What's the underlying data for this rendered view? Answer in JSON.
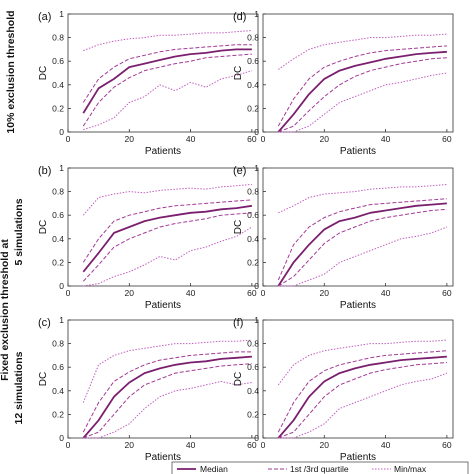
{
  "row_labels": {
    "top": "10% exclusion threshold",
    "group_outer": "Fixed exclusion threshold at",
    "middle": "5 simulations",
    "bottom": "12 simulations"
  },
  "legend": {
    "median": "Median",
    "quartile": "1st /3rd quartile",
    "minmax": "Min/max"
  },
  "colors": {
    "median": "#7a1f6e",
    "quartile": "#a23a96",
    "minmax": "#c25fc0",
    "axis": "#333333"
  },
  "chart_data": [
    {
      "panel": "(a)",
      "type": "line",
      "xlabel": "Patients",
      "ylabel": "DC",
      "xlim": [
        0,
        62
      ],
      "ylim": [
        0,
        1
      ],
      "xticks": [
        0,
        20,
        40,
        60
      ],
      "yticks": [
        0,
        0.2,
        0.4,
        0.6,
        0.8,
        1
      ],
      "x": [
        5,
        10,
        15,
        20,
        25,
        30,
        35,
        40,
        45,
        50,
        55,
        60
      ],
      "series": [
        {
          "name": "Median",
          "style": "median",
          "values": [
            0.16,
            0.37,
            0.45,
            0.55,
            0.58,
            0.61,
            0.64,
            0.66,
            0.67,
            0.69,
            0.7,
            0.7
          ]
        },
        {
          "name": "1st /3rd quartile",
          "style": "quartile",
          "values": [
            0.25,
            0.45,
            0.55,
            0.62,
            0.65,
            0.68,
            0.7,
            0.71,
            0.72,
            0.73,
            0.74,
            0.74
          ]
        },
        {
          "name": "1st /3rd quartile",
          "style": "quartile",
          "values": [
            0.05,
            0.25,
            0.38,
            0.46,
            0.52,
            0.55,
            0.58,
            0.6,
            0.63,
            0.64,
            0.65,
            0.66
          ]
        },
        {
          "name": "Min/max",
          "style": "minmax",
          "values": [
            0.69,
            0.74,
            0.77,
            0.79,
            0.8,
            0.82,
            0.82,
            0.83,
            0.84,
            0.84,
            0.85,
            0.86
          ]
        },
        {
          "name": "Min/max",
          "style": "minmax",
          "values": [
            0.02,
            0.06,
            0.12,
            0.25,
            0.3,
            0.4,
            0.35,
            0.42,
            0.38,
            0.45,
            0.48,
            0.52
          ]
        }
      ]
    },
    {
      "panel": "(b)",
      "type": "line",
      "xlabel": "Patients",
      "ylabel": "DC",
      "xlim": [
        0,
        62
      ],
      "ylim": [
        0,
        1
      ],
      "xticks": [
        0,
        20,
        40,
        60
      ],
      "yticks": [
        0,
        0.2,
        0.4,
        0.6,
        0.8,
        1
      ],
      "x": [
        5,
        10,
        15,
        20,
        25,
        30,
        35,
        40,
        45,
        50,
        55,
        60
      ],
      "series": [
        {
          "name": "Median",
          "style": "median",
          "values": [
            0.12,
            0.28,
            0.45,
            0.5,
            0.55,
            0.58,
            0.6,
            0.62,
            0.63,
            0.65,
            0.66,
            0.68
          ]
        },
        {
          "name": "1st /3rd quartile",
          "style": "quartile",
          "values": [
            0.2,
            0.4,
            0.55,
            0.6,
            0.63,
            0.66,
            0.68,
            0.69,
            0.7,
            0.71,
            0.72,
            0.73
          ]
        },
        {
          "name": "1st /3rd quartile",
          "style": "quartile",
          "values": [
            0.04,
            0.18,
            0.33,
            0.4,
            0.45,
            0.5,
            0.53,
            0.55,
            0.57,
            0.6,
            0.61,
            0.62
          ]
        },
        {
          "name": "Min/max",
          "style": "minmax",
          "values": [
            0.6,
            0.75,
            0.78,
            0.8,
            0.79,
            0.81,
            0.82,
            0.83,
            0.82,
            0.84,
            0.85,
            0.86
          ]
        },
        {
          "name": "Min/max",
          "style": "minmax",
          "values": [
            0.0,
            0.02,
            0.08,
            0.12,
            0.18,
            0.25,
            0.22,
            0.3,
            0.33,
            0.38,
            0.42,
            0.5
          ]
        }
      ]
    },
    {
      "panel": "(c)",
      "type": "line",
      "xlabel": "Patients",
      "ylabel": "DC",
      "xlim": [
        0,
        62
      ],
      "ylim": [
        0,
        1
      ],
      "xticks": [
        0,
        20,
        40,
        60
      ],
      "yticks": [
        0,
        0.2,
        0.4,
        0.6,
        0.8,
        1
      ],
      "x": [
        5,
        10,
        15,
        20,
        25,
        30,
        35,
        40,
        45,
        50,
        55,
        60
      ],
      "series": [
        {
          "name": "Median",
          "style": "median",
          "values": [
            0.0,
            0.15,
            0.35,
            0.47,
            0.55,
            0.59,
            0.62,
            0.64,
            0.65,
            0.67,
            0.68,
            0.69
          ]
        },
        {
          "name": "1st /3rd quartile",
          "style": "quartile",
          "values": [
            0.05,
            0.3,
            0.48,
            0.56,
            0.62,
            0.66,
            0.68,
            0.7,
            0.71,
            0.72,
            0.73,
            0.73
          ]
        },
        {
          "name": "1st /3rd quartile",
          "style": "quartile",
          "values": [
            0.0,
            0.05,
            0.2,
            0.35,
            0.45,
            0.5,
            0.55,
            0.57,
            0.59,
            0.61,
            0.62,
            0.63
          ]
        },
        {
          "name": "Min/max",
          "style": "minmax",
          "values": [
            0.3,
            0.62,
            0.7,
            0.74,
            0.76,
            0.78,
            0.8,
            0.8,
            0.81,
            0.82,
            0.82,
            0.83
          ]
        },
        {
          "name": "Min/max",
          "style": "minmax",
          "values": [
            0.0,
            0.0,
            0.05,
            0.12,
            0.25,
            0.35,
            0.4,
            0.42,
            0.45,
            0.48,
            0.45,
            0.47
          ]
        }
      ]
    },
    {
      "panel": "(d)",
      "type": "line",
      "xlabel": "Patients",
      "ylabel": "DC",
      "xlim": [
        0,
        62
      ],
      "ylim": [
        0,
        1
      ],
      "xticks": [
        0,
        20,
        40,
        60
      ],
      "yticks": [
        0,
        0.2,
        0.4,
        0.6,
        0.8,
        1
      ],
      "x": [
        5,
        10,
        15,
        20,
        25,
        30,
        35,
        40,
        45,
        50,
        55,
        60
      ],
      "series": [
        {
          "name": "Median",
          "style": "median",
          "values": [
            0.0,
            0.15,
            0.32,
            0.45,
            0.52,
            0.56,
            0.59,
            0.62,
            0.64,
            0.66,
            0.67,
            0.68
          ]
        },
        {
          "name": "1st /3rd quartile",
          "style": "quartile",
          "values": [
            0.05,
            0.28,
            0.45,
            0.55,
            0.6,
            0.64,
            0.67,
            0.69,
            0.7,
            0.71,
            0.72,
            0.73
          ]
        },
        {
          "name": "1st /3rd quartile",
          "style": "quartile",
          "values": [
            0.0,
            0.05,
            0.18,
            0.3,
            0.4,
            0.47,
            0.52,
            0.55,
            0.58,
            0.6,
            0.62,
            0.63
          ]
        },
        {
          "name": "Min/max",
          "style": "minmax",
          "values": [
            0.53,
            0.62,
            0.7,
            0.74,
            0.76,
            0.78,
            0.8,
            0.8,
            0.81,
            0.82,
            0.82,
            0.83
          ]
        },
        {
          "name": "Min/max",
          "style": "minmax",
          "values": [
            0.0,
            0.0,
            0.05,
            0.15,
            0.25,
            0.3,
            0.35,
            0.4,
            0.42,
            0.45,
            0.48,
            0.5
          ]
        }
      ]
    },
    {
      "panel": "(e)",
      "type": "line",
      "xlabel": "Patients",
      "ylabel": "DC",
      "xlim": [
        0,
        62
      ],
      "ylim": [
        0,
        1
      ],
      "xticks": [
        0,
        20,
        40,
        60
      ],
      "yticks": [
        0,
        0.2,
        0.4,
        0.6,
        0.8,
        1
      ],
      "x": [
        5,
        10,
        15,
        20,
        25,
        30,
        35,
        40,
        45,
        50,
        55,
        60
      ],
      "series": [
        {
          "name": "Median",
          "style": "median",
          "values": [
            0.0,
            0.2,
            0.35,
            0.48,
            0.55,
            0.58,
            0.62,
            0.64,
            0.66,
            0.68,
            0.69,
            0.7
          ]
        },
        {
          "name": "1st /3rd quartile",
          "style": "quartile",
          "values": [
            0.05,
            0.35,
            0.5,
            0.58,
            0.63,
            0.66,
            0.69,
            0.7,
            0.71,
            0.72,
            0.73,
            0.74
          ]
        },
        {
          "name": "1st /3rd quartile",
          "style": "quartile",
          "values": [
            0.0,
            0.08,
            0.22,
            0.36,
            0.45,
            0.5,
            0.55,
            0.58,
            0.6,
            0.62,
            0.64,
            0.65
          ]
        },
        {
          "name": "Min/max",
          "style": "minmax",
          "values": [
            0.62,
            0.68,
            0.75,
            0.78,
            0.79,
            0.8,
            0.82,
            0.83,
            0.84,
            0.84,
            0.85,
            0.86
          ]
        },
        {
          "name": "Min/max",
          "style": "minmax",
          "values": [
            0.0,
            0.0,
            0.05,
            0.1,
            0.2,
            0.25,
            0.3,
            0.35,
            0.4,
            0.42,
            0.45,
            0.5
          ]
        }
      ]
    },
    {
      "panel": "(f)",
      "type": "line",
      "xlabel": "Patients",
      "ylabel": "DC",
      "xlim": [
        0,
        62
      ],
      "ylim": [
        0,
        1
      ],
      "xticks": [
        0,
        20,
        40,
        60
      ],
      "yticks": [
        0,
        0.2,
        0.4,
        0.6,
        0.8,
        1
      ],
      "x": [
        5,
        10,
        15,
        20,
        25,
        30,
        35,
        40,
        45,
        50,
        55,
        60
      ],
      "series": [
        {
          "name": "Median",
          "style": "median",
          "values": [
            0.0,
            0.15,
            0.35,
            0.48,
            0.55,
            0.59,
            0.62,
            0.64,
            0.66,
            0.67,
            0.68,
            0.69
          ]
        },
        {
          "name": "1st /3rd quartile",
          "style": "quartile",
          "values": [
            0.05,
            0.3,
            0.48,
            0.57,
            0.62,
            0.65,
            0.68,
            0.7,
            0.71,
            0.72,
            0.73,
            0.74
          ]
        },
        {
          "name": "1st /3rd quartile",
          "style": "quartile",
          "values": [
            0.0,
            0.05,
            0.2,
            0.35,
            0.45,
            0.5,
            0.55,
            0.58,
            0.6,
            0.62,
            0.63,
            0.64
          ]
        },
        {
          "name": "Min/max",
          "style": "minmax",
          "values": [
            0.45,
            0.62,
            0.7,
            0.74,
            0.76,
            0.78,
            0.8,
            0.8,
            0.81,
            0.82,
            0.82,
            0.83
          ]
        },
        {
          "name": "Min/max",
          "style": "minmax",
          "values": [
            0.0,
            0.0,
            0.05,
            0.12,
            0.25,
            0.3,
            0.35,
            0.4,
            0.45,
            0.48,
            0.5,
            0.55
          ]
        }
      ]
    }
  ]
}
